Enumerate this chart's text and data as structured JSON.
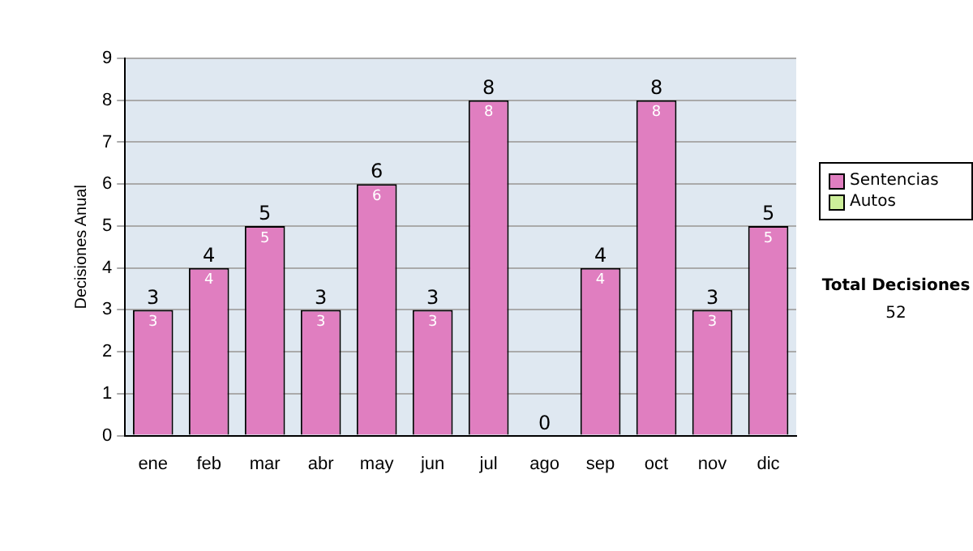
{
  "chart_data": {
    "type": "bar",
    "stacked": true,
    "ylabel": "Decisiones Anual",
    "categories": [
      "ene",
      "feb",
      "mar",
      "abr",
      "may",
      "jun",
      "jul",
      "ago",
      "sep",
      "oct",
      "nov",
      "dic"
    ],
    "series": [
      {
        "name": "Sentencias",
        "color": "#e07ec0",
        "values": [
          3,
          4,
          5,
          3,
          6,
          3,
          8,
          0,
          4,
          8,
          3,
          5
        ],
        "value_labels": [
          "3",
          "4",
          "5",
          "3",
          "6",
          "3",
          "8",
          null,
          "4",
          "8",
          "3",
          "5"
        ]
      },
      {
        "name": "Autos",
        "color": "#ccee99",
        "values": [
          0,
          0,
          0,
          0,
          0,
          0,
          0,
          0,
          0,
          0,
          0,
          0
        ]
      }
    ],
    "totals": [
      "3",
      "4",
      "5",
      "3",
      "6",
      "3",
      "8",
      "0",
      "4",
      "8",
      "3",
      "5"
    ],
    "ylim": [
      0,
      9
    ],
    "yticks": [
      0,
      1,
      2,
      3,
      4,
      5,
      6,
      7,
      8,
      9
    ],
    "grid": "y",
    "legend": "right",
    "annotations": [
      "Total Decisiones",
      "52"
    ]
  }
}
